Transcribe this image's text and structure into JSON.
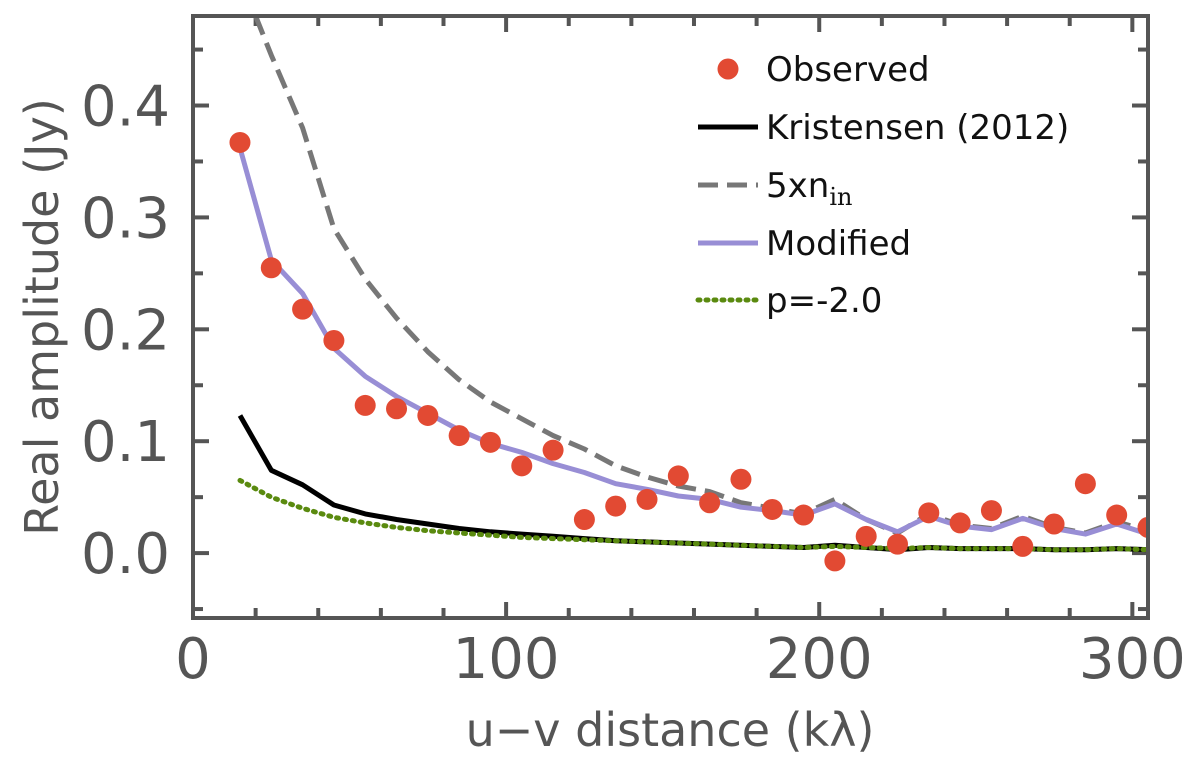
{
  "chart_data": {
    "type": "line",
    "xlabel": "u−v distance (kλ)",
    "ylabel": "Real amplitude (Jy)",
    "xlim": [
      0,
      305
    ],
    "ylim": [
      -0.058,
      0.48
    ],
    "xticks": [
      0,
      100,
      200,
      300
    ],
    "xtick_labels": [
      "0",
      "100",
      "200",
      "300"
    ],
    "yticks": [
      0.0,
      0.1,
      0.2,
      0.3,
      0.4
    ],
    "ytick_labels": [
      "0.0",
      "0.1",
      "0.2",
      "0.3",
      "0.4"
    ],
    "legend_position": "top-right",
    "series": [
      {
        "name": "Observed",
        "kind": "scatter",
        "color": "#e24a33",
        "x": [
          15,
          25,
          35,
          45,
          55,
          65,
          75,
          85,
          95,
          105,
          115,
          125,
          135,
          145,
          155,
          165,
          175,
          185,
          195,
          205,
          215,
          225,
          235,
          245,
          255,
          265,
          275,
          285,
          295,
          305
        ],
        "y": [
          0.367,
          0.255,
          0.218,
          0.19,
          0.132,
          0.129,
          0.123,
          0.105,
          0.099,
          0.078,
          0.092,
          0.03,
          0.042,
          0.048,
          0.069,
          0.045,
          0.066,
          0.039,
          0.034,
          -0.007,
          0.015,
          0.008,
          0.036,
          0.027,
          0.038,
          0.006,
          0.026,
          0.062,
          0.034,
          0.023
        ]
      },
      {
        "name": "Kristensen (2012)",
        "kind": "line",
        "color": "#000000",
        "style": "solid",
        "x": [
          15,
          25,
          35,
          45,
          55,
          65,
          75,
          85,
          95,
          105,
          115,
          125,
          135,
          145,
          155,
          165,
          175,
          185,
          195,
          205,
          215,
          225,
          235,
          245,
          255,
          265,
          275,
          285,
          295,
          305
        ],
        "y": [
          0.123,
          0.074,
          0.061,
          0.043,
          0.035,
          0.03,
          0.026,
          0.022,
          0.019,
          0.017,
          0.015,
          0.013,
          0.011,
          0.01,
          0.009,
          0.008,
          0.007,
          0.006,
          0.005,
          0.007,
          0.005,
          0.003,
          0.005,
          0.004,
          0.004,
          0.004,
          0.003,
          0.003,
          0.004,
          0.003
        ]
      },
      {
        "name": "5xn",
        "name_subscript": "in",
        "kind": "line",
        "color": "#777777",
        "style": "dashed",
        "x": [
          20,
          25,
          35,
          45,
          55,
          65,
          75,
          85,
          95,
          105,
          115,
          125,
          135,
          145,
          155,
          165,
          175,
          185,
          195,
          205,
          215,
          225,
          235,
          245,
          255,
          265,
          275,
          285,
          295,
          305
        ],
        "y": [
          0.48,
          0.445,
          0.38,
          0.29,
          0.245,
          0.21,
          0.18,
          0.155,
          0.135,
          0.12,
          0.105,
          0.093,
          0.078,
          0.068,
          0.06,
          0.055,
          0.045,
          0.04,
          0.035,
          0.048,
          0.03,
          0.018,
          0.035,
          0.025,
          0.022,
          0.033,
          0.023,
          0.018,
          0.028,
          0.02
        ]
      },
      {
        "name": "Modified",
        "kind": "line",
        "color": "#988ed5",
        "style": "solid",
        "x": [
          15,
          25,
          35,
          45,
          55,
          65,
          75,
          85,
          95,
          105,
          115,
          125,
          135,
          145,
          155,
          165,
          175,
          185,
          195,
          205,
          215,
          225,
          235,
          245,
          255,
          265,
          275,
          285,
          295,
          305
        ],
        "y": [
          0.362,
          0.262,
          0.232,
          0.183,
          0.158,
          0.14,
          0.125,
          0.11,
          0.098,
          0.09,
          0.08,
          0.072,
          0.062,
          0.057,
          0.051,
          0.048,
          0.041,
          0.038,
          0.034,
          0.044,
          0.03,
          0.019,
          0.033,
          0.024,
          0.021,
          0.031,
          0.022,
          0.017,
          0.026,
          0.017
        ]
      },
      {
        "name": "p=-2.0",
        "kind": "line",
        "color": "#5a8a0f",
        "style": "dotted",
        "x": [
          15,
          25,
          35,
          45,
          55,
          65,
          75,
          85,
          95,
          105,
          115,
          125,
          135,
          145,
          155,
          165,
          175,
          185,
          195,
          205,
          215,
          225,
          235,
          245,
          255,
          265,
          275,
          285,
          295,
          305
        ],
        "y": [
          0.065,
          0.05,
          0.04,
          0.032,
          0.027,
          0.023,
          0.02,
          0.018,
          0.016,
          0.014,
          0.013,
          0.012,
          0.011,
          0.01,
          0.009,
          0.008,
          0.007,
          0.006,
          0.005,
          0.006,
          0.005,
          0.004,
          0.005,
          0.004,
          0.004,
          0.004,
          0.003,
          0.003,
          0.004,
          0.003
        ]
      }
    ]
  }
}
